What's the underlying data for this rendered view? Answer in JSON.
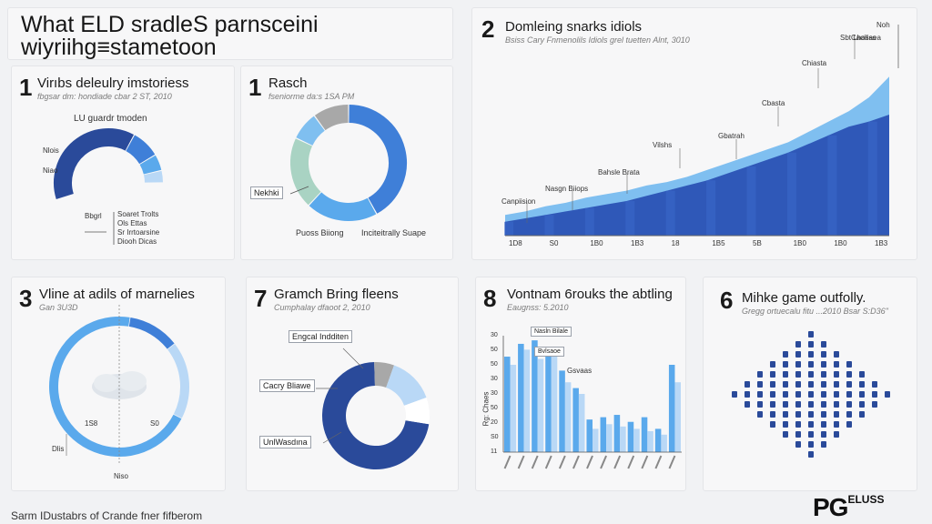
{
  "header": {
    "title_line1": "What ELD sradleS parnsceini",
    "title_line2": "wiyriihg≡stametoon"
  },
  "footer": {
    "text": "Sarm IDustabrs of Crande fner fifberom"
  },
  "logo": {
    "main": "PG",
    "sub": "ELUSS"
  },
  "colors": {
    "dark_blue": "#2a4a9a",
    "mid_blue": "#3f7fd8",
    "light_blue": "#5aa9ec",
    "pale_blue": "#b9d8f6",
    "gray": "#a8a8a8",
    "green": "#a9d3c3"
  },
  "panels": {
    "p1": {
      "num": "1",
      "title": "Virıbs deleulry imstoriess",
      "sub": "fbgsar dm: hondiade cbar 2 ST, 2010",
      "chart_label": "LU guardr tmoden",
      "labels": [
        "Nlois",
        "Niao",
        "Soaret Trolts",
        "Ols Ettas",
        "Sr Irrtoarsine",
        "Diooh Dicas"
      ],
      "side_label": "Bbgrl"
    },
    "p2": {
      "num": "1",
      "title": "Rasch",
      "sub": "fseniorme da:s 1SA PM",
      "left_label": "Nekhki",
      "bottom_left": "Puoss Biiong",
      "bottom_right": "Inciteitrally Suape"
    },
    "p3": {
      "num": "2",
      "title": "Domleing snarks idiols",
      "sub": "Bsiss Cary Fnmenolils Idiols grel tuetten Alnt, 3010",
      "annotations": [
        "Canpiision",
        "Nasgn Biiops",
        "Bahsle Brata",
        "Vilshs",
        "Gbatrah",
        "Cbasta",
        "Chiasta",
        "Sbt Lhasaea"
      ],
      "legend": [
        "Noh",
        "Caciliss"
      ],
      "ticks": [
        "1D8",
        "S0",
        "1B0",
        "1B3",
        "18",
        "1B5",
        "5B",
        "1B0",
        "1B0",
        "1B3"
      ]
    },
    "p4": {
      "num": "3",
      "title": "Vline at adils of marnelies",
      "sub": "Gan 3U3D",
      "labels": [
        "1S8",
        "S0",
        "Dlis",
        "Niso"
      ]
    },
    "p5": {
      "num": "7",
      "title": "Gramch Bring fleens",
      "sub": "Cumphalay dfaoot 2, 2010",
      "labels": [
        "Engcal Indditen",
        "Cacry Bliawe",
        "UnlWasdına"
      ]
    },
    "p6": {
      "num": "8",
      "title": "Vontnam 6rouks the abtling",
      "sub": "Eaugnss: 5.2010",
      "y_label": "Rg: Chaes",
      "y_ticks": [
        "30",
        "50",
        "50",
        "30",
        "30",
        "50",
        "20",
        "S0",
        "11"
      ],
      "bar_labels": [
        "Nasln Bilale",
        "Bvlsaoe",
        "Gsvaas"
      ]
    },
    "p7": {
      "num": "6",
      "title": "Mihke game outfolly.",
      "sub": "Gregg ortuecalu fitu ...2010 Bsar S:D36\""
    }
  },
  "chart_data": [
    {
      "type": "pie",
      "title": "Virıbs deleulry imstoriess",
      "values": [
        62,
        14,
        8,
        6
      ],
      "colors": [
        "#2a4a9a",
        "#3f7fd8",
        "#5aa9ec",
        "#b9d8f6"
      ]
    },
    {
      "type": "pie",
      "title": "Rasch",
      "values": [
        42,
        20,
        20,
        8,
        10
      ],
      "colors": [
        "#3f7fd8",
        "#5aa9ec",
        "#a9d3c3",
        "#7fbff0",
        "#a8a8a8"
      ]
    },
    {
      "type": "area",
      "title": "Domleing snarks idiols",
      "series": [
        {
          "values": [
            8,
            10,
            12,
            14,
            16,
            18,
            20,
            23,
            26,
            29,
            32,
            36,
            40,
            44,
            48,
            53,
            58,
            63,
            66,
            70
          ]
        },
        {
          "values": [
            12,
            14,
            17,
            19,
            22,
            24,
            26,
            29,
            31,
            34,
            38,
            42,
            46,
            50,
            54,
            60,
            66,
            72,
            80,
            92
          ]
        }
      ],
      "ylim": [
        0,
        100
      ]
    },
    {
      "type": "pie",
      "title": "Vline at adils of marnelies",
      "values": [
        70,
        12,
        18
      ],
      "colors": [
        "#5aa9ec",
        "#3f7fd8",
        "#b9d8f6"
      ]
    },
    {
      "type": "pie",
      "title": "Gramch Bring fleens",
      "values": [
        72,
        6,
        14,
        8
      ],
      "colors": [
        "#2a4a9a",
        "#a8a8a8",
        "#b9d8f6",
        "#ffffff"
      ]
    },
    {
      "type": "bar",
      "title": "Vontnam 6rouks the abtling",
      "series": [
        {
          "name": "a",
          "values": [
            82,
            93,
            96,
            85,
            70,
            55,
            28,
            30,
            32,
            26,
            30,
            20,
            75
          ]
        },
        {
          "name": "b",
          "values": [
            75,
            88,
            80,
            90,
            60,
            50,
            20,
            24,
            22,
            20,
            18,
            15,
            60
          ]
        }
      ],
      "ylim": [
        0,
        100
      ]
    },
    {
      "type": "scatter",
      "title": "Mihke game outfolly.",
      "rows": [
        1,
        3,
        5,
        7,
        9,
        11,
        13,
        11,
        9,
        7,
        5,
        3,
        1
      ]
    }
  ]
}
